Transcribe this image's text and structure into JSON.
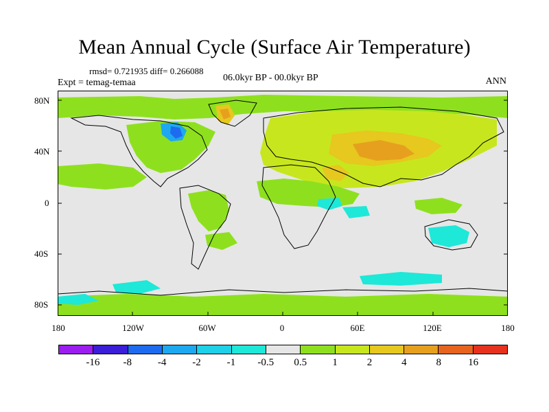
{
  "title": "Mean Annual Cycle (Surface Air Temperature)",
  "stats": {
    "rmsd_label": "rmsd= 0.721935",
    "diff_label": "diff= 0.266088"
  },
  "experiment": "Expt = temag-temaa",
  "period": "06.0kyr BP - 00.0kyr BP",
  "season": "ANN",
  "lat_labels": [
    "80N",
    "40N",
    "0",
    "40S",
    "80S"
  ],
  "lon_labels": [
    "180",
    "120W",
    "60W",
    "0",
    "60E",
    "120E",
    "180"
  ],
  "colorbar": {
    "colors": [
      "#9b1df0",
      "#3b1ed8",
      "#1e6bf0",
      "#1ea8f0",
      "#1ed0e8",
      "#1ee8d8",
      "#e6e6e6",
      "#8ee01e",
      "#c8e61e",
      "#e6c81e",
      "#e6a01e",
      "#e6641e",
      "#e6321e"
    ],
    "tick_labels": [
      "-16",
      "-8",
      "-4",
      "-2",
      "-1",
      "-0.5",
      "0.5",
      "1",
      "2",
      "4",
      "8",
      "16"
    ]
  },
  "map_colors": {
    "neutral": "#e6e6e6",
    "c1": "#8ee01e",
    "c2": "#c8e61e",
    "c4": "#e6c81e",
    "c8": "#e6a01e",
    "m1": "#1ee8d8",
    "m2": "#1ed0e8",
    "m4": "#1ea8f0",
    "m8": "#1e6bf0"
  }
}
